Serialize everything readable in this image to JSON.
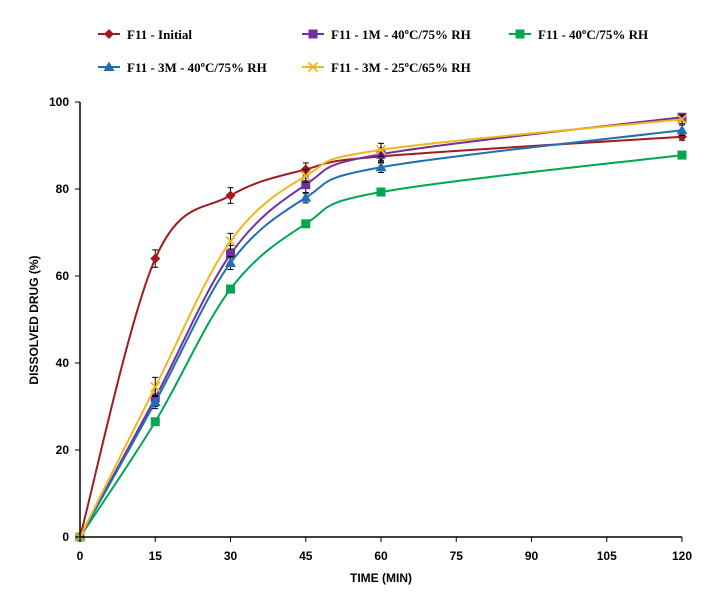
{
  "chart_data": {
    "type": "line",
    "title": "",
    "xlabel": "TIME (MIN)",
    "ylabel": "DISSOLVED DRUG (%)",
    "x_ticks": [
      "0",
      "15",
      "30",
      "45",
      "60",
      "75",
      "90",
      "105",
      "120"
    ],
    "y_ticks": [
      "0",
      "20",
      "40",
      "60",
      "80",
      "100"
    ],
    "ylim": [
      0,
      100
    ],
    "grid": false,
    "legend_position": "top",
    "categories": [
      "0",
      "15",
      "30",
      "45",
      "60",
      "120"
    ],
    "series": [
      {
        "name": "F11  - Initial",
        "color": "#a31a1e",
        "marker": "diamond",
        "values": [
          0,
          64,
          78.5,
          84.5,
          87.5,
          92
        ],
        "errors": [
          0,
          2,
          1.8,
          1.5,
          1.5,
          0.8
        ]
      },
      {
        "name": "F11 - 1M - 40ºC/75% RH",
        "color": "#7030a0",
        "marker": "square",
        "values": [
          0,
          32,
          65,
          81,
          88,
          96.5
        ],
        "errors": [
          0,
          2,
          2,
          2,
          1.5,
          0.8
        ]
      },
      {
        "name": "F11  - 40ºC/75% RH",
        "color": "#00a650",
        "marker": "square",
        "values": [
          0,
          26.5,
          57,
          72,
          79.3,
          87.8
        ],
        "errors": [
          0,
          0,
          0,
          0,
          0.5,
          0
        ]
      },
      {
        "name": "F11 - 3M - 40ºC/75% RH",
        "color": "#1f6fb4",
        "marker": "triangle",
        "values": [
          0,
          31,
          63,
          78,
          85,
          93.5
        ],
        "errors": [
          0,
          1.5,
          1.5,
          1.2,
          1.2,
          1.2
        ]
      },
      {
        "name": "F11 - 3M - 25ºC/65% RH",
        "color": "#f2b51d",
        "marker": "x",
        "values": [
          0,
          34.5,
          68,
          83,
          89,
          96
        ],
        "errors": [
          0,
          2.2,
          1.8,
          1.5,
          1.5,
          1
        ]
      }
    ]
  }
}
